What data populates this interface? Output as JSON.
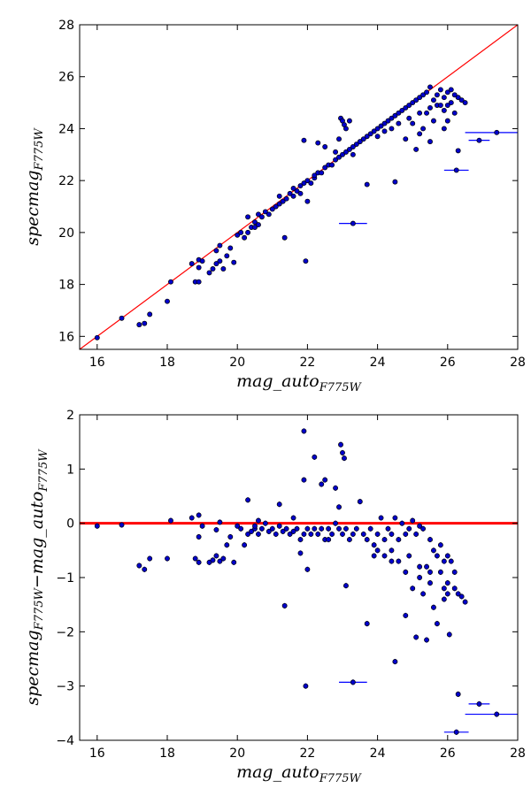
{
  "chart_data": [
    {
      "type": "scatter",
      "title": "",
      "xlabel": "mag_auto",
      "xlabel_sub": "F775W",
      "ylabel": "specmag",
      "ylabel_sub": "F775W",
      "xlim": [
        15.5,
        28
      ],
      "ylim": [
        15.5,
        28
      ],
      "xticks": [
        16,
        18,
        20,
        22,
        24,
        26,
        28
      ],
      "yticks": [
        16,
        18,
        20,
        22,
        24,
        26,
        28
      ],
      "grid": false,
      "legend": "none",
      "reference_line": {
        "type": "identity",
        "color": "#ff0000"
      },
      "marker_color": "#0000cc",
      "errorbar_color": "#0000ff",
      "points": [
        [
          16.0,
          15.95
        ],
        [
          16.7,
          16.7
        ],
        [
          17.2,
          16.45
        ],
        [
          17.35,
          16.5
        ],
        [
          17.5,
          16.85
        ],
        [
          18.0,
          17.35
        ],
        [
          18.1,
          18.1
        ],
        [
          18.7,
          18.8
        ],
        [
          18.8,
          18.1
        ],
        [
          18.9,
          18.1
        ],
        [
          18.9,
          18.65
        ],
        [
          18.9,
          18.95
        ],
        [
          19.0,
          18.9
        ],
        [
          19.2,
          18.45
        ],
        [
          19.3,
          18.6
        ],
        [
          19.4,
          18.8
        ],
        [
          19.4,
          19.3
        ],
        [
          19.5,
          18.9
        ],
        [
          19.5,
          19.5
        ],
        [
          19.6,
          18.6
        ],
        [
          19.7,
          19.1
        ],
        [
          19.8,
          19.4
        ],
        [
          19.9,
          18.85
        ],
        [
          20.0,
          19.9
        ],
        [
          20.1,
          20.0
        ],
        [
          20.2,
          19.8
        ],
        [
          20.3,
          20.0
        ],
        [
          20.3,
          20.6
        ],
        [
          20.4,
          20.2
        ],
        [
          20.5,
          20.2
        ],
        [
          20.5,
          20.4
        ],
        [
          20.6,
          20.3
        ],
        [
          20.6,
          20.7
        ],
        [
          20.7,
          20.6
        ],
        [
          20.8,
          20.8
        ],
        [
          20.9,
          20.7
        ],
        [
          21.0,
          20.9
        ],
        [
          21.1,
          21.0
        ],
        [
          21.2,
          21.1
        ],
        [
          21.2,
          21.4
        ],
        [
          21.3,
          21.2
        ],
        [
          21.35,
          19.8
        ],
        [
          21.4,
          21.3
        ],
        [
          21.5,
          21.5
        ],
        [
          21.6,
          21.4
        ],
        [
          21.6,
          21.7
        ],
        [
          21.7,
          21.6
        ],
        [
          21.8,
          21.8
        ],
        [
          21.8,
          21.5
        ],
        [
          21.9,
          21.9
        ],
        [
          21.9,
          23.55
        ],
        [
          21.95,
          18.9
        ],
        [
          22.0,
          21.2
        ],
        [
          22.0,
          22.0
        ],
        [
          22.1,
          21.9
        ],
        [
          22.2,
          22.1
        ],
        [
          22.2,
          22.2
        ],
        [
          22.3,
          22.3
        ],
        [
          22.3,
          23.45
        ],
        [
          22.4,
          22.3
        ],
        [
          22.5,
          22.5
        ],
        [
          22.5,
          23.3
        ],
        [
          22.6,
          22.6
        ],
        [
          22.7,
          22.6
        ],
        [
          22.8,
          22.8
        ],
        [
          22.8,
          23.1
        ],
        [
          22.9,
          23.6
        ],
        [
          22.9,
          22.9
        ],
        [
          22.95,
          24.4
        ],
        [
          23.0,
          24.3
        ],
        [
          23.0,
          23.0
        ],
        [
          23.05,
          24.15
        ],
        [
          23.1,
          24.0
        ],
        [
          23.1,
          23.1
        ],
        [
          23.2,
          24.3
        ],
        [
          23.2,
          23.2
        ],
        [
          23.3,
          23.3
        ],
        [
          23.3,
          23.0
        ],
        [
          23.4,
          23.4
        ],
        [
          23.5,
          23.5
        ],
        [
          23.6,
          23.6
        ],
        [
          23.7,
          21.85
        ],
        [
          23.7,
          23.7
        ],
        [
          23.8,
          23.8
        ],
        [
          23.9,
          23.9
        ],
        [
          24.0,
          24.0
        ],
        [
          24.0,
          23.7
        ],
        [
          24.1,
          24.1
        ],
        [
          24.2,
          24.2
        ],
        [
          24.2,
          23.9
        ],
        [
          24.3,
          24.3
        ],
        [
          24.4,
          24.4
        ],
        [
          24.4,
          24.0
        ],
        [
          24.5,
          21.95
        ],
        [
          24.5,
          24.5
        ],
        [
          24.6,
          24.6
        ],
        [
          24.6,
          24.2
        ],
        [
          24.7,
          24.7
        ],
        [
          24.8,
          24.8
        ],
        [
          24.8,
          23.6
        ],
        [
          24.9,
          24.9
        ],
        [
          24.9,
          24.4
        ],
        [
          25.0,
          25.0
        ],
        [
          25.0,
          24.2
        ],
        [
          25.1,
          25.1
        ],
        [
          25.1,
          23.2
        ],
        [
          25.2,
          25.2
        ],
        [
          25.2,
          24.6
        ],
        [
          25.3,
          25.3
        ],
        [
          25.3,
          24.0
        ],
        [
          25.4,
          24.6
        ],
        [
          25.4,
          25.4
        ],
        [
          25.5,
          24.8
        ],
        [
          25.5,
          25.6
        ],
        [
          25.6,
          25.1
        ],
        [
          25.6,
          24.3
        ],
        [
          25.7,
          25.3
        ],
        [
          25.7,
          24.9
        ],
        [
          25.8,
          24.9
        ],
        [
          25.8,
          25.5
        ],
        [
          25.9,
          25.2
        ],
        [
          25.9,
          24.7
        ],
        [
          26.0,
          25.4
        ],
        [
          26.0,
          24.9
        ],
        [
          26.1,
          25.5
        ],
        [
          26.1,
          25.0
        ],
        [
          26.2,
          25.3
        ],
        [
          26.2,
          24.6
        ],
        [
          26.3,
          25.2
        ],
        [
          26.3,
          23.15
        ],
        [
          26.4,
          25.1
        ],
        [
          26.5,
          25.0
        ],
        [
          26.0,
          24.3
        ],
        [
          25.9,
          24.0
        ],
        [
          25.5,
          23.5
        ],
        [
          25.2,
          23.8
        ]
      ],
      "errorbar_points": [
        {
          "x": 23.3,
          "y": 20.35,
          "xerr": 0.4
        },
        {
          "x": 26.25,
          "y": 22.4,
          "xerr": 0.35
        },
        {
          "x": 26.9,
          "y": 23.55,
          "xerr": 0.3
        },
        {
          "x": 27.4,
          "y": 23.85,
          "xerr": 0.9
        }
      ]
    },
    {
      "type": "scatter",
      "title": "",
      "xlabel": "mag_auto",
      "xlabel_sub": "F775W",
      "ylabel_parts": [
        {
          "text": "specmag",
          "sub": "F775W"
        },
        {
          "text": "−",
          "sub": ""
        },
        {
          "text": "mag_auto",
          "sub": "F775W"
        }
      ],
      "xlim": [
        15.5,
        28
      ],
      "ylim": [
        -4,
        2
      ],
      "xticks": [
        16,
        18,
        20,
        22,
        24,
        26,
        28
      ],
      "yticks": [
        -4,
        -3,
        -2,
        -1,
        0,
        1,
        2
      ],
      "grid": false,
      "legend": "none",
      "reference_line": {
        "type": "horizontal",
        "y": 0,
        "color": "#ff0000"
      },
      "marker_color": "#0000cc",
      "errorbar_color": "#0000ff",
      "yerr": 0.05,
      "points": [
        [
          16.0,
          -0.05
        ],
        [
          16.7,
          -0.03
        ],
        [
          17.2,
          -0.78
        ],
        [
          17.35,
          -0.85
        ],
        [
          17.5,
          -0.65
        ],
        [
          18.0,
          -0.65
        ],
        [
          18.1,
          0.05
        ],
        [
          18.7,
          0.1
        ],
        [
          18.8,
          -0.65
        ],
        [
          18.9,
          -0.72
        ],
        [
          18.9,
          0.15
        ],
        [
          18.9,
          -0.25
        ],
        [
          19.0,
          -0.05
        ],
        [
          19.2,
          -0.72
        ],
        [
          19.3,
          -0.68
        ],
        [
          19.4,
          -0.6
        ],
        [
          19.4,
          -0.12
        ],
        [
          19.5,
          -0.7
        ],
        [
          19.5,
          0.02
        ],
        [
          19.6,
          -0.65
        ],
        [
          19.7,
          -0.4
        ],
        [
          19.8,
          -0.25
        ],
        [
          19.9,
          -0.72
        ],
        [
          20.0,
          -0.05
        ],
        [
          20.1,
          -0.1
        ],
        [
          20.2,
          -0.4
        ],
        [
          20.3,
          -0.2
        ],
        [
          20.3,
          0.43
        ],
        [
          20.4,
          -0.15
        ],
        [
          20.5,
          -0.1
        ],
        [
          20.5,
          -0.05
        ],
        [
          20.6,
          -0.2
        ],
        [
          20.6,
          0.05
        ],
        [
          20.7,
          -0.1
        ],
        [
          20.8,
          0.0
        ],
        [
          20.9,
          -0.15
        ],
        [
          21.0,
          -0.1
        ],
        [
          21.1,
          -0.2
        ],
        [
          21.2,
          -0.05
        ],
        [
          21.2,
          0.35
        ],
        [
          21.3,
          -0.15
        ],
        [
          21.35,
          -1.52
        ],
        [
          21.4,
          -0.1
        ],
        [
          21.5,
          -0.2
        ],
        [
          21.6,
          -0.15
        ],
        [
          21.6,
          0.1
        ],
        [
          21.7,
          -0.1
        ],
        [
          21.8,
          -0.3
        ],
        [
          21.8,
          -0.55
        ],
        [
          21.9,
          0.8
        ],
        [
          21.9,
          1.7
        ],
        [
          21.95,
          -3.0
        ],
        [
          22.0,
          -0.85
        ],
        [
          22.0,
          -0.1
        ],
        [
          22.1,
          -0.2
        ],
        [
          22.2,
          -0.1
        ],
        [
          22.2,
          1.22
        ],
        [
          22.3,
          -0.2
        ],
        [
          22.4,
          0.72
        ],
        [
          22.4,
          -0.1
        ],
        [
          22.5,
          -0.3
        ],
        [
          22.5,
          0.8
        ],
        [
          22.6,
          -0.1
        ],
        [
          22.7,
          -0.2
        ],
        [
          22.8,
          0.0
        ],
        [
          22.8,
          0.65
        ],
        [
          22.9,
          0.3
        ],
        [
          22.9,
          -0.1
        ],
        [
          22.95,
          1.45
        ],
        [
          23.0,
          1.3
        ],
        [
          23.0,
          -0.2
        ],
        [
          23.05,
          1.2
        ],
        [
          23.1,
          -1.15
        ],
        [
          23.1,
          -0.1
        ],
        [
          23.2,
          -0.3
        ],
        [
          23.3,
          -0.2
        ],
        [
          23.4,
          -0.1
        ],
        [
          23.5,
          0.4
        ],
        [
          23.6,
          -0.2
        ],
        [
          23.7,
          -1.85
        ],
        [
          23.7,
          -0.3
        ],
        [
          23.8,
          -0.1
        ],
        [
          23.9,
          -0.4
        ],
        [
          24.0,
          -0.2
        ],
        [
          24.0,
          -0.5
        ],
        [
          24.1,
          0.1
        ],
        [
          24.2,
          -0.3
        ],
        [
          24.2,
          -0.6
        ],
        [
          24.3,
          -0.1
        ],
        [
          24.4,
          -0.2
        ],
        [
          24.4,
          -0.5
        ],
        [
          24.5,
          -2.55
        ],
        [
          24.5,
          0.1
        ],
        [
          24.6,
          -0.3
        ],
        [
          24.6,
          -0.7
        ],
        [
          24.7,
          0.0
        ],
        [
          24.8,
          -0.2
        ],
        [
          24.8,
          -1.7
        ],
        [
          24.9,
          -0.1
        ],
        [
          24.9,
          -0.6
        ],
        [
          25.0,
          0.05
        ],
        [
          25.0,
          -1.2
        ],
        [
          25.1,
          -0.2
        ],
        [
          25.1,
          -2.1
        ],
        [
          25.2,
          -0.05
        ],
        [
          25.2,
          -0.8
        ],
        [
          25.3,
          -0.1
        ],
        [
          25.3,
          -1.3
        ],
        [
          25.4,
          -0.8
        ],
        [
          25.4,
          -2.15
        ],
        [
          25.5,
          -0.9
        ],
        [
          25.5,
          -0.3
        ],
        [
          25.6,
          -0.5
        ],
        [
          25.6,
          -1.55
        ],
        [
          25.7,
          -0.6
        ],
        [
          25.7,
          -1.85
        ],
        [
          25.8,
          -0.9
        ],
        [
          25.8,
          -0.4
        ],
        [
          25.9,
          -0.7
        ],
        [
          25.9,
          -1.2
        ],
        [
          26.0,
          -0.6
        ],
        [
          26.0,
          -1.1
        ],
        [
          26.05,
          -2.05
        ],
        [
          26.1,
          -0.7
        ],
        [
          26.2,
          -1.2
        ],
        [
          26.2,
          -0.9
        ],
        [
          26.3,
          -3.15
        ],
        [
          26.3,
          -1.3
        ],
        [
          26.4,
          -1.35
        ],
        [
          26.5,
          -1.45
        ],
        [
          26.0,
          -1.3
        ],
        [
          25.9,
          -1.4
        ],
        [
          25.5,
          -1.1
        ],
        [
          25.2,
          -1.0
        ],
        [
          24.8,
          -0.9
        ],
        [
          24.4,
          -0.7
        ],
        [
          23.9,
          -0.6
        ],
        [
          22.6,
          -0.3
        ],
        [
          21.9,
          -0.2
        ]
      ],
      "errorbar_points": [
        {
          "x": 23.3,
          "y": -2.93,
          "xerr": 0.4
        },
        {
          "x": 26.25,
          "y": -3.85,
          "xerr": 0.35
        },
        {
          "x": 26.9,
          "y": -3.33,
          "xerr": 0.3
        },
        {
          "x": 27.4,
          "y": -3.52,
          "xerr": 0.9
        }
      ]
    }
  ]
}
